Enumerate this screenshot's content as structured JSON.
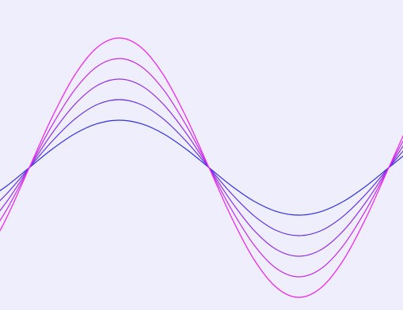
{
  "chart_data": {
    "type": "line",
    "background": "#efeefc",
    "xlim": [
      0,
      509
    ],
    "ylim": [
      -180,
      212
    ],
    "x": [
      -19.75,
      8.625,
      37,
      65.375,
      93.75,
      122.125,
      150.5,
      178.875,
      207.25,
      235.625,
      264,
      292.375,
      320.75,
      349.125,
      377.5,
      405.875,
      434.25,
      462.625,
      491,
      519.375
    ],
    "series": [
      {
        "color": "#3030e0",
        "values": [
          -42.4,
          -23.0,
          0,
          23.0,
          42.4,
          55.4,
          60,
          55.4,
          42.4,
          23.0,
          0,
          -23.0,
          -42.4,
          -55.4,
          -60,
          -55.4,
          -42.4,
          -23.0,
          0,
          23.0
        ]
      },
      {
        "color": "#6230e2",
        "values": [
          -60.8,
          -32.9,
          0,
          32.9,
          60.8,
          79.5,
          86,
          79.5,
          60.8,
          32.9,
          0,
          -32.9,
          -60.8,
          -79.5,
          -86,
          -79.5,
          -60.8,
          -32.9,
          0,
          32.9
        ]
      },
      {
        "color": "#9430e6",
        "values": [
          -79.2,
          -42.9,
          0,
          42.9,
          79.2,
          103.5,
          112,
          103.5,
          79.2,
          42.9,
          0,
          -42.9,
          -79.2,
          -103.5,
          -112,
          -103.5,
          -79.2,
          -42.9,
          0,
          42.9
        ]
      },
      {
        "color": "#c42cec",
        "values": [
          -97.6,
          -52.8,
          0,
          52.8,
          97.6,
          127.5,
          138,
          127.5,
          97.6,
          52.8,
          0,
          -52.8,
          -97.6,
          -127.5,
          -138,
          -127.5,
          -97.6,
          -52.8,
          0,
          52.8
        ]
      },
      {
        "color": "#ee22ee",
        "values": [
          -116.0,
          -62.8,
          0,
          62.8,
          116.0,
          151.5,
          164,
          151.5,
          116.0,
          62.8,
          0,
          -62.8,
          -116.0,
          -151.5,
          -164,
          -151.5,
          -116.0,
          -62.8,
          0,
          62.8
        ]
      }
    ]
  }
}
